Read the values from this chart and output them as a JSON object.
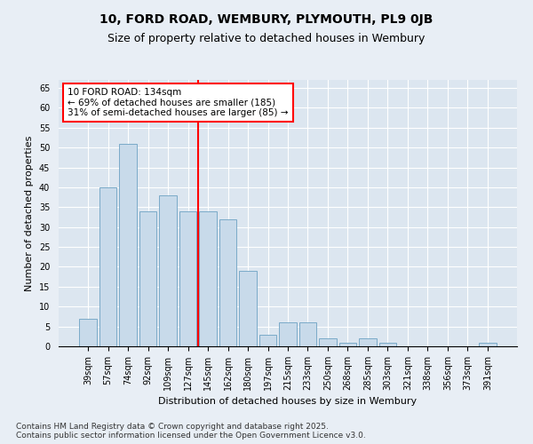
{
  "title": "10, FORD ROAD, WEMBURY, PLYMOUTH, PL9 0JB",
  "subtitle": "Size of property relative to detached houses in Wembury",
  "xlabel": "Distribution of detached houses by size in Wembury",
  "ylabel": "Number of detached properties",
  "categories": [
    "39sqm",
    "57sqm",
    "74sqm",
    "92sqm",
    "109sqm",
    "127sqm",
    "145sqm",
    "162sqm",
    "180sqm",
    "197sqm",
    "215sqm",
    "233sqm",
    "250sqm",
    "268sqm",
    "285sqm",
    "303sqm",
    "321sqm",
    "338sqm",
    "356sqm",
    "373sqm",
    "391sqm"
  ],
  "values": [
    7,
    40,
    51,
    34,
    38,
    34,
    34,
    32,
    19,
    3,
    6,
    6,
    2,
    1,
    2,
    1,
    0,
    0,
    0,
    0,
    1
  ],
  "bar_color": "#c8daea",
  "bar_edge_color": "#7aaac8",
  "vline_x": 6,
  "vline_color": "red",
  "annotation_title": "10 FORD ROAD: 134sqm",
  "annotation_line1": "← 69% of detached houses are smaller (185)",
  "annotation_line2": "31% of semi-detached houses are larger (85) →",
  "annotation_box_color": "white",
  "annotation_box_edge": "red",
  "ylim": [
    0,
    67
  ],
  "yticks": [
    0,
    5,
    10,
    15,
    20,
    25,
    30,
    35,
    40,
    45,
    50,
    55,
    60,
    65
  ],
  "bg_color": "#e8eef5",
  "plot_bg_color": "#dce6f0",
  "footer": "Contains HM Land Registry data © Crown copyright and database right 2025.\nContains public sector information licensed under the Open Government Licence v3.0.",
  "title_fontsize": 10,
  "subtitle_fontsize": 9,
  "axis_label_fontsize": 8,
  "tick_fontsize": 7,
  "footer_fontsize": 6.5,
  "annotation_fontsize": 7.5
}
